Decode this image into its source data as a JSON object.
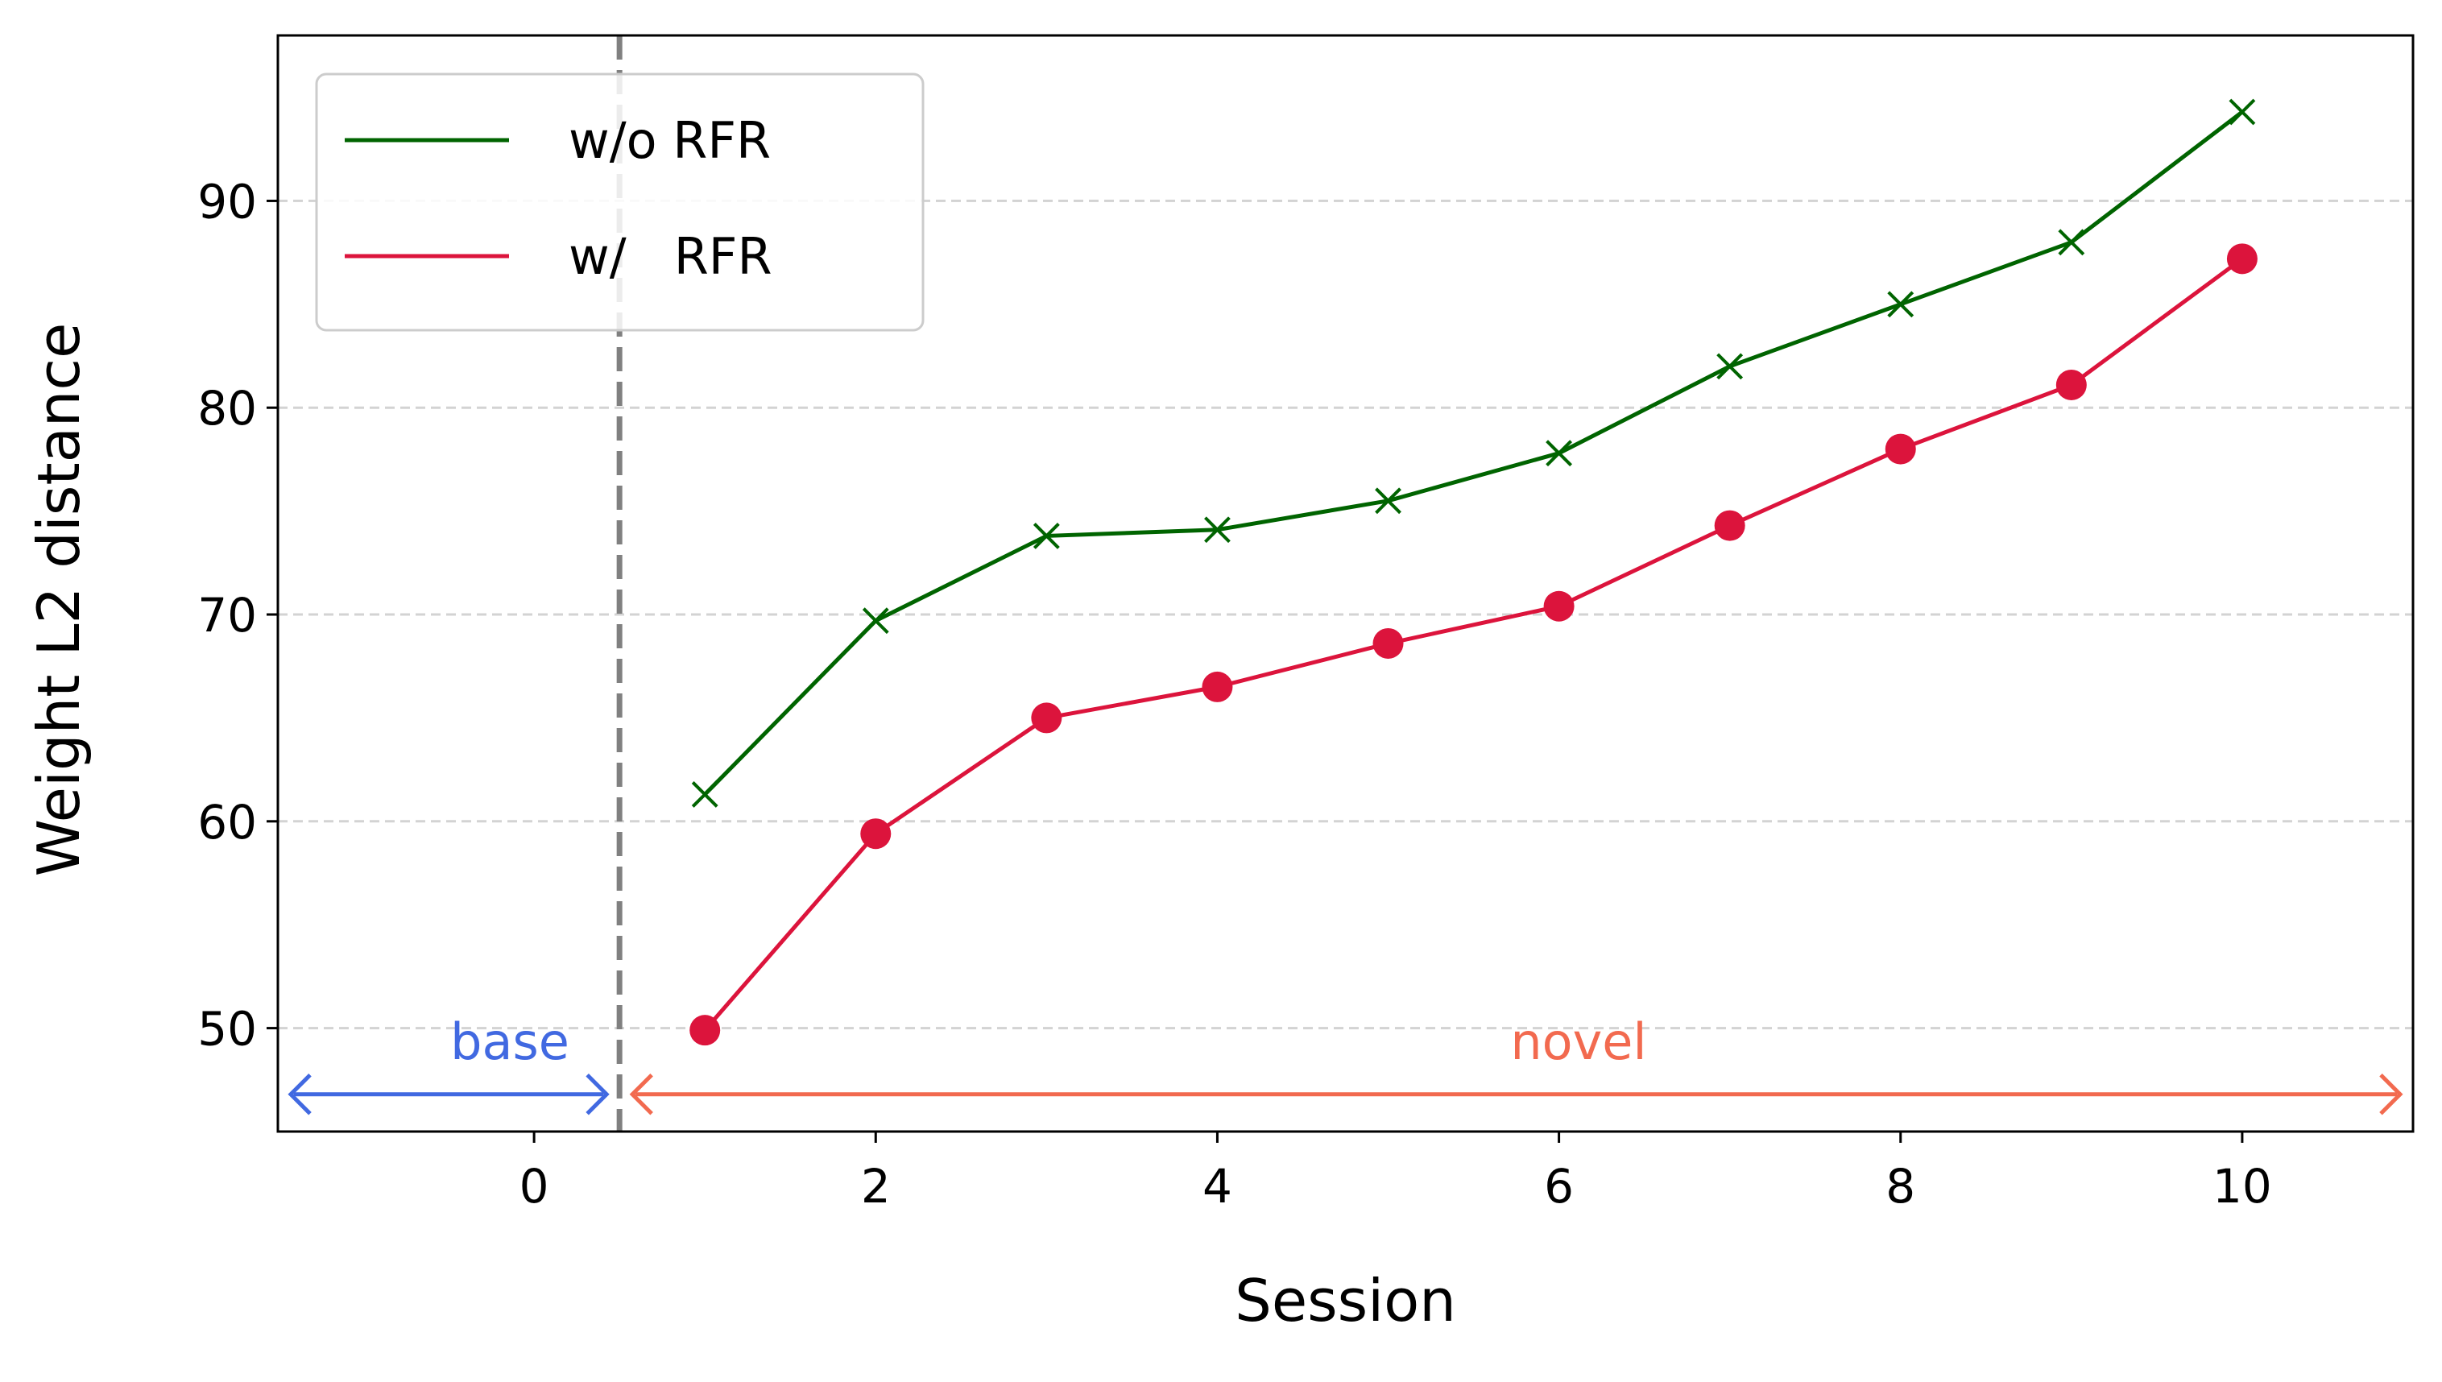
{
  "chart_data": {
    "type": "line",
    "xlabel": "Session",
    "ylabel": "Weight L2 distance",
    "xlim": [
      -1.5,
      11.0
    ],
    "ylim": [
      45,
      98
    ],
    "xticks": [
      0,
      2,
      4,
      6,
      8,
      10
    ],
    "yticks": [
      50,
      60,
      70,
      80,
      90
    ],
    "grid": "horizontal dashed",
    "legend_position": "upper-left",
    "series": [
      {
        "name": "w/o RFR",
        "color": "#006400",
        "marker": "x",
        "x": [
          1,
          2,
          3,
          4,
          5,
          6,
          7,
          8,
          9,
          10
        ],
        "y": [
          61.3,
          69.7,
          73.8,
          74.1,
          75.5,
          77.8,
          82.0,
          85.0,
          88.0,
          94.3
        ]
      },
      {
        "name": "w/   RFR",
        "color": "#DC143C",
        "marker": "o",
        "x": [
          1,
          2,
          3,
          4,
          5,
          6,
          7,
          8,
          9,
          10
        ],
        "y": [
          49.9,
          59.4,
          65.0,
          66.5,
          68.6,
          70.4,
          74.3,
          78.0,
          81.1,
          87.2
        ]
      }
    ],
    "divider_x": 0.5,
    "regions": [
      {
        "label": "base",
        "from": -1.5,
        "to": 0.5,
        "color": "#4169E1"
      },
      {
        "label": "novel",
        "from": 0.5,
        "to": 11.0,
        "color": "#F26A4F"
      }
    ],
    "region_arrow_y": 46.8
  }
}
